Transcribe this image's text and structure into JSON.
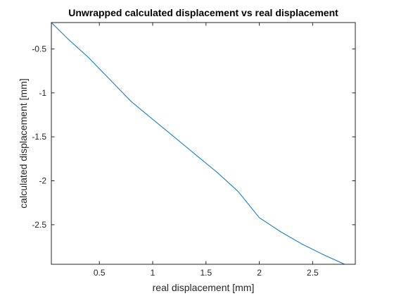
{
  "chart_data": {
    "type": "line",
    "title": "Unwrapped calculated displacement vs real displacement",
    "xlabel": "real displacement [mm]",
    "ylabel": "calculated displacement [mm]",
    "xlim": [
      0.05,
      2.9
    ],
    "ylim": [
      -2.95,
      -0.2
    ],
    "xticks": [
      0.5,
      1,
      1.5,
      2,
      2.5
    ],
    "xtick_labels": [
      "0.5",
      "1",
      "1.5",
      "2",
      "2.5"
    ],
    "yticks": [
      -0.5,
      -1,
      -1.5,
      -2,
      -2.5
    ],
    "ytick_labels": [
      "-0.5",
      "-1",
      "-1.5",
      "-2",
      "-2.5"
    ],
    "grid": false,
    "box": true,
    "series": [
      {
        "color": "#0072BD",
        "x": [
          0.05,
          0.2,
          0.4,
          0.6,
          0.8,
          1.0,
          1.2,
          1.4,
          1.6,
          1.8,
          2.0,
          2.2,
          2.4,
          2.6,
          2.8
        ],
        "y": [
          -0.2,
          -0.38,
          -0.6,
          -0.85,
          -1.1,
          -1.3,
          -1.5,
          -1.7,
          -1.9,
          -2.12,
          -2.42,
          -2.58,
          -2.72,
          -2.84,
          -2.95
        ]
      }
    ]
  }
}
